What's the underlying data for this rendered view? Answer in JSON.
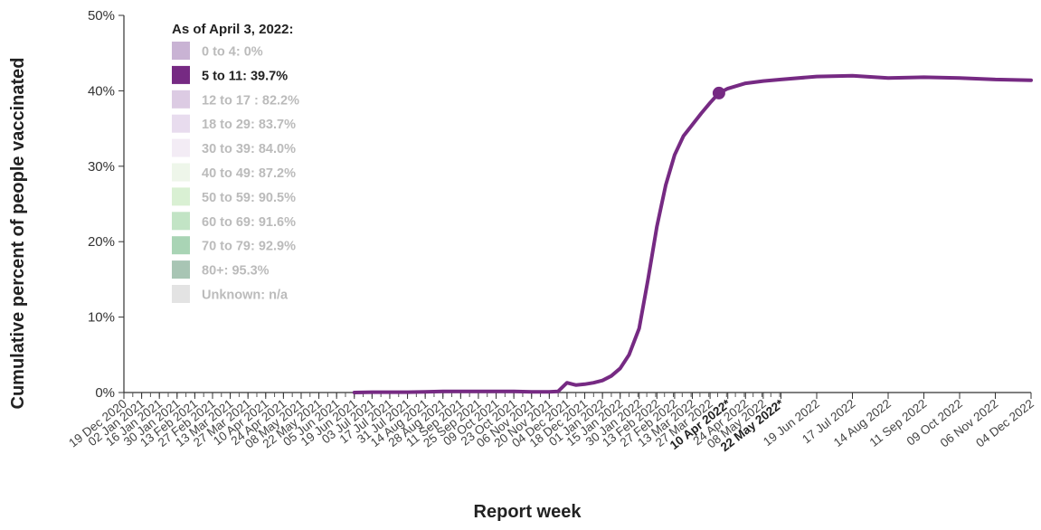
{
  "chart_data": {
    "type": "line",
    "xlabel": "Report week",
    "ylabel": "Cumulative percent of people vaccinated",
    "ylim": [
      0,
      50
    ],
    "y_ticks": [
      "0%",
      "10%",
      "20%",
      "30%",
      "40%",
      "50%"
    ],
    "grid": false,
    "legend": {
      "title": "As of April 3, 2022:",
      "placement": "top-left",
      "items": [
        {
          "label": "0 to 4: 0%",
          "color": "#c9b3d4",
          "active": false
        },
        {
          "label": "5 to 11: 39.7%",
          "color": "#762a83",
          "active": true
        },
        {
          "label": "12 to 17 : 82.2%",
          "color": "#dccbe3",
          "active": false
        },
        {
          "label": "18 to 29: 83.7%",
          "color": "#e8dcee",
          "active": false
        },
        {
          "label": "30 to 39: 84.0%",
          "color": "#f3ecf5",
          "active": false
        },
        {
          "label": "40 to 49: 87.2%",
          "color": "#eef6ea",
          "active": false
        },
        {
          "label": "50 to 59: 90.5%",
          "color": "#d9f0d3",
          "active": false
        },
        {
          "label": "60 to 69: 91.6%",
          "color": "#c2e4c5",
          "active": false
        },
        {
          "label": "70 to 79: 92.9%",
          "color": "#a9d4b5",
          "active": false
        },
        {
          "label": "80+: 95.3%",
          "color": "#a8c5b4",
          "active": false
        },
        {
          "label": "Unknown: n/a",
          "color": "#e3e3e3",
          "active": false
        }
      ]
    },
    "x_ticks_biweekly": [
      "19 Dec 2020",
      "02 Jan 2021",
      "16 Jan 2021",
      "30 Jan 2021",
      "13 Feb 2021",
      "27 Feb 2021",
      "13 Mar 2021",
      "27 Mar 2021",
      "10 Apr 2021",
      "24 Apr 2021",
      "08 May 2021",
      "22 May 2021",
      "05 Jun 2021",
      "19 Jun 2021",
      "03 Jul 2021",
      "17 Jul 2021",
      "31 Jul 2021",
      "14 Aug 2021",
      "28 Aug 2021",
      "11 Sep 2021",
      "25 Sep 2021",
      "09 Oct 2021",
      "23 Oct 2021",
      "06 Nov 2021",
      "20 Nov 2021",
      "04 Dec 2021",
      "18 Dec 2021",
      "01 Jan 2022",
      "15 Jan 2022",
      "30 Jan 2022",
      "13 Feb 2022",
      "27 Feb 2022",
      "13 Mar 2022",
      "27 Mar 2022",
      "10 Apr 2022*",
      "24 Apr 2022",
      "08 May 2022",
      "22 May 2022*"
    ],
    "x_ticks_projection": [
      "19 Jun 2022",
      "17 Jul 2022",
      "14 Aug 2022",
      "11 Sep 2022",
      "09 Oct 2022",
      "06 Nov 2022",
      "04 Dec 2022"
    ],
    "bold_ticks": [
      "10 Apr 2022*",
      "22 May 2022*"
    ],
    "series": [
      {
        "name": "5 to 11",
        "color": "#762a83",
        "points": [
          [
            "2021-06-19",
            0.0
          ],
          [
            "2021-07-03",
            0.05
          ],
          [
            "2021-07-17",
            0.05
          ],
          [
            "2021-07-31",
            0.05
          ],
          [
            "2021-08-14",
            0.1
          ],
          [
            "2021-08-28",
            0.15
          ],
          [
            "2021-09-11",
            0.15
          ],
          [
            "2021-09-25",
            0.15
          ],
          [
            "2021-10-09",
            0.15
          ],
          [
            "2021-10-23",
            0.15
          ],
          [
            "2021-11-06",
            0.1
          ],
          [
            "2021-11-20",
            0.1
          ],
          [
            "2021-11-27",
            0.15
          ],
          [
            "2021-12-04",
            1.3
          ],
          [
            "2021-12-11",
            1.0
          ],
          [
            "2021-12-18",
            1.1
          ],
          [
            "2021-12-25",
            1.3
          ],
          [
            "2022-01-01",
            1.6
          ],
          [
            "2022-01-08",
            2.2
          ],
          [
            "2022-01-15",
            3.2
          ],
          [
            "2022-01-22",
            5.0
          ],
          [
            "2022-01-30",
            8.5
          ],
          [
            "2022-02-06",
            15.0
          ],
          [
            "2022-02-13",
            22.0
          ],
          [
            "2022-02-20",
            27.5
          ],
          [
            "2022-02-27",
            31.5
          ],
          [
            "2022-03-06",
            34.0
          ],
          [
            "2022-03-13",
            35.5
          ],
          [
            "2022-03-20",
            37.0
          ],
          [
            "2022-03-27",
            38.4
          ],
          [
            "2022-04-03",
            39.7
          ],
          [
            "2022-04-10",
            40.3
          ],
          [
            "2022-04-24",
            41.0
          ],
          [
            "2022-05-08",
            41.3
          ],
          [
            "2022-05-22",
            41.5
          ],
          [
            "2022-06-19",
            41.9
          ],
          [
            "2022-07-17",
            42.0
          ],
          [
            "2022-08-14",
            41.7
          ],
          [
            "2022-09-11",
            41.8
          ],
          [
            "2022-10-09",
            41.7
          ],
          [
            "2022-11-06",
            41.5
          ],
          [
            "2022-12-04",
            41.4
          ]
        ],
        "marker": {
          "date": "2022-04-03",
          "value": 39.7
        }
      }
    ]
  }
}
